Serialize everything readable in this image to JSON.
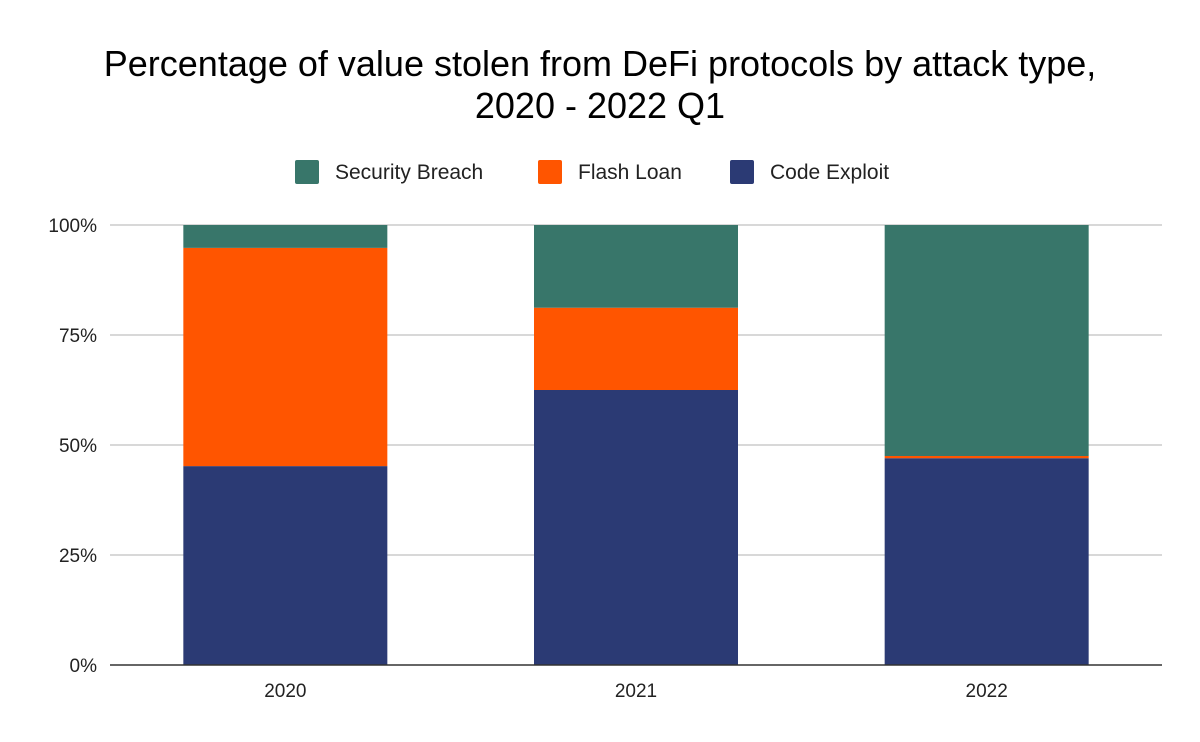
{
  "chart_data": {
    "type": "bar",
    "stacked": true,
    "title_lines": [
      "Percentage of value stolen from DeFi protocols by attack type,",
      "2020 - 2022 Q1"
    ],
    "xlabel": "",
    "ylabel": "",
    "ylim": [
      0,
      100
    ],
    "y_ticks": [
      "0%",
      "25%",
      "50%",
      "75%",
      "100%"
    ],
    "y_tick_values": [
      0,
      25,
      50,
      75,
      100
    ],
    "grid": true,
    "legend_position": "top",
    "categories": [
      "2020",
      "2021",
      "2022"
    ],
    "series": [
      {
        "name": "Code Exploit",
        "color": "#2b3a74",
        "values": [
          45.2,
          62.5,
          47.0
        ]
      },
      {
        "name": "Flash Loan",
        "color": "#ff5500",
        "values": [
          49.6,
          18.7,
          0.5
        ]
      },
      {
        "name": "Security Breach",
        "color": "#38766a",
        "values": [
          5.2,
          18.8,
          52.5
        ]
      }
    ],
    "legend_order": [
      "Security Breach",
      "Flash Loan",
      "Code Exploit"
    ]
  }
}
